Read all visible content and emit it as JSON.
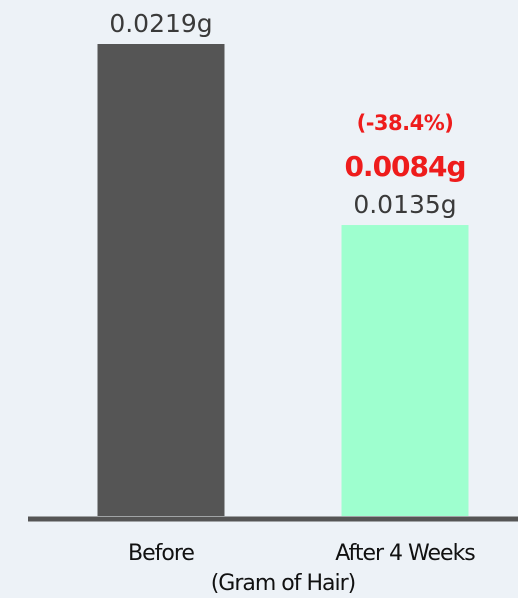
{
  "chart_data": {
    "type": "bar",
    "categories": [
      "Before",
      "After 4 Weeks"
    ],
    "values": [
      0.0219,
      0.0135
    ],
    "value_labels": [
      "0.0219g",
      "0.0135g"
    ],
    "bar_colors": [
      "#555555",
      "#9effcf"
    ],
    "annotation": {
      "category": "After 4 Weeks",
      "difference": "0.0084g",
      "percent": "(-38.4%)",
      "color": "#ee1c1c"
    },
    "xlabel": "(Gram of Hair)",
    "ylabel": "",
    "ylim": [
      0,
      0.0219
    ],
    "axis_color": "#555555",
    "grid": false,
    "legend": "none"
  }
}
